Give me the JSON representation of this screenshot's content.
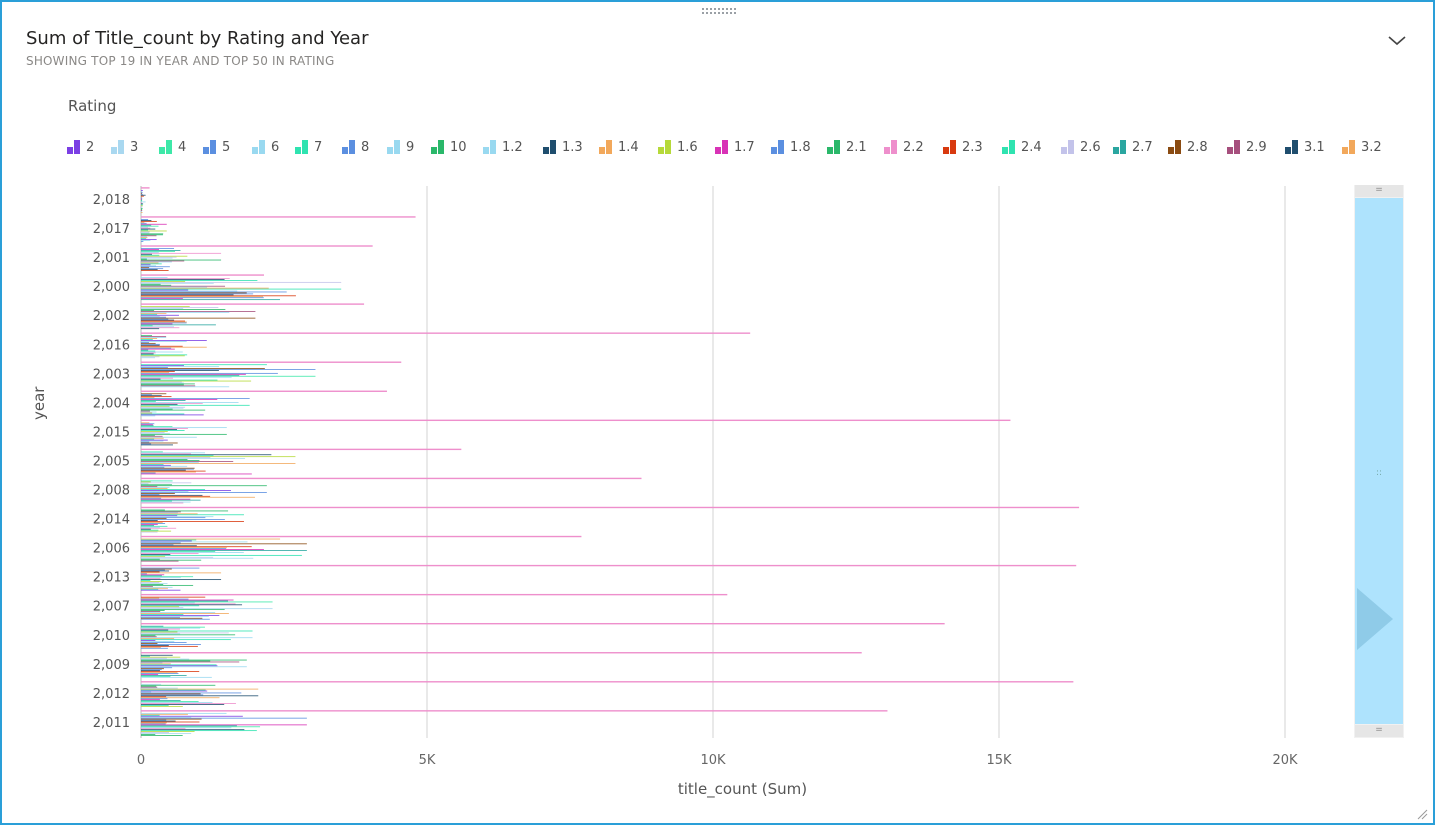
{
  "visual": {
    "title": "Sum of Title_count by Rating and Year",
    "subtitle": "SHOWING TOP 19 IN YEAR AND TOP 50 IN RATING",
    "menu_icon": "chevron-down-icon"
  },
  "legend": {
    "title": "Rating",
    "items": [
      {
        "label": "2",
        "color": "#7b3fe4"
      },
      {
        "label": "3",
        "color": "#a9d8f0"
      },
      {
        "label": "4",
        "color": "#3de8a8"
      },
      {
        "label": "5",
        "color": "#5b8fe0"
      },
      {
        "label": "6",
        "color": "#99d9f0"
      },
      {
        "label": "7",
        "color": "#2fe3b0"
      },
      {
        "label": "8",
        "color": "#5b8fe0"
      },
      {
        "label": "9",
        "color": "#99d9f0"
      },
      {
        "label": "10",
        "color": "#2ab86a"
      },
      {
        "label": "1.2",
        "color": "#99d9f0"
      },
      {
        "label": "1.3",
        "color": "#1f4e6e"
      },
      {
        "label": "1.4",
        "color": "#f2a85b"
      },
      {
        "label": "1.6",
        "color": "#b6d93a"
      },
      {
        "label": "1.7",
        "color": "#d832b6"
      },
      {
        "label": "1.8",
        "color": "#5b8fe0"
      },
      {
        "label": "2.1",
        "color": "#2ab86a"
      },
      {
        "label": "2.2",
        "color": "#ee8fcc"
      },
      {
        "label": "2.3",
        "color": "#d83a0f"
      },
      {
        "label": "2.4",
        "color": "#2fe3b0"
      },
      {
        "label": "2.6",
        "color": "#c3c3ea"
      },
      {
        "label": "2.7",
        "color": "#2aa6a0"
      },
      {
        "label": "2.8",
        "color": "#8a4b12"
      },
      {
        "label": "2.9",
        "color": "#a64f7d"
      },
      {
        "label": "3.1",
        "color": "#1f4e6e"
      },
      {
        "label": "3.2",
        "color": "#f2a85b"
      }
    ]
  },
  "chart_data": {
    "type": "bar",
    "orientation": "horizontal",
    "title": "Sum of Title_count by Rating and Year",
    "xlabel": "title_count (Sum)",
    "ylabel": "year",
    "xlim": [
      0,
      21000
    ],
    "x_ticks": [
      0,
      5000,
      10000,
      15000,
      20000
    ],
    "x_tick_labels": [
      "0",
      "5K",
      "10K",
      "15K",
      "20K"
    ],
    "grid": "vertical",
    "legend_position": "top-left",
    "categories": [
      "2,018",
      "2,017",
      "2,001",
      "2,000",
      "2,002",
      "2,016",
      "2,003",
      "2,004",
      "2,015",
      "2,005",
      "2,008",
      "2,014",
      "2,006",
      "2,013",
      "2,007",
      "2,010",
      "2,009",
      "2,012",
      "2,011"
    ],
    "highlight_series": {
      "name": "2.2",
      "color": "#ee8fcc"
    },
    "highlight_values": [
      150,
      4800,
      4050,
      2150,
      3900,
      10650,
      4550,
      4300,
      15200,
      5600,
      8750,
      16400,
      7700,
      16350,
      10250,
      14050,
      12600,
      16300,
      13050
    ],
    "group_max_values": [
      80,
      450,
      1400,
      3500,
      2000,
      1150,
      3050,
      1900,
      1500,
      2700,
      2200,
      1800,
      2900,
      1400,
      2300,
      1950,
      1850,
      2050,
      2900
    ]
  },
  "scrollbar": {
    "arrow_icon": "triangle-right-icon",
    "grip_icon": "grip-icon"
  }
}
